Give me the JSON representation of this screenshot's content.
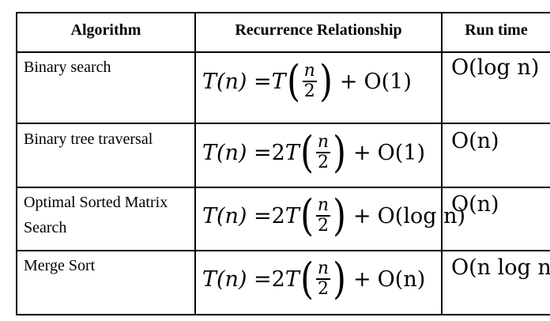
{
  "headers": {
    "algorithm": "Algorithm",
    "recurrence": "Recurrence Relationship",
    "runtime": "Run time"
  },
  "rows": [
    {
      "name_line1": "Binary search",
      "name_line2": "",
      "coef": "",
      "rest": "O(1)",
      "runtime": "O(log n)"
    },
    {
      "name_line1": "Binary tree traversal",
      "name_line2": "",
      "coef": "2",
      "rest": "O(1)",
      "runtime": "O(n)"
    },
    {
      "name_line1": "Optimal Sorted Matrix",
      "name_line2": "Search",
      "coef": "2",
      "rest": "O(log n)",
      "runtime": "O(n)"
    },
    {
      "name_line1": "Merge Sort",
      "name_line2": "",
      "coef": "2",
      "rest": "O(n)",
      "runtime": "O(n log n)"
    }
  ],
  "formula": {
    "lhs": "T(n) = ",
    "fn": "T",
    "numerator": "n",
    "denominator": "2",
    "plus": "+"
  }
}
